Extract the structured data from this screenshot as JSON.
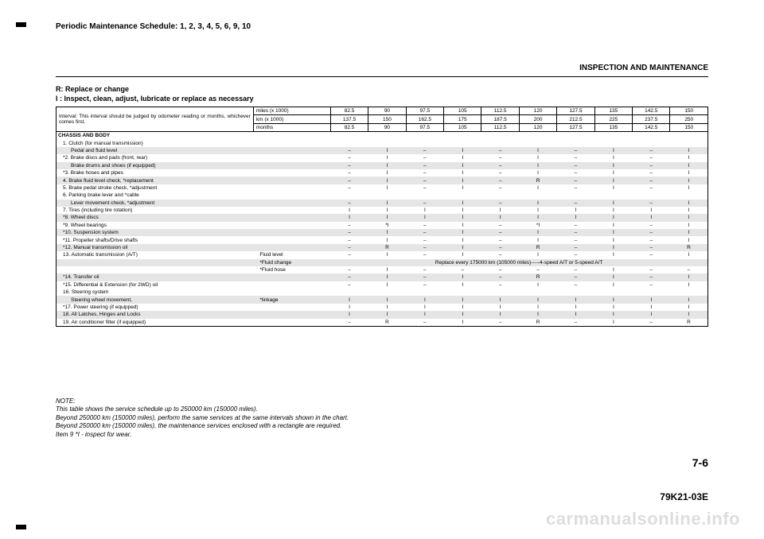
{
  "header_label": "Periodic Maintenance Schedule: 1, 2, 3, 4, 5, 6, 9, 10",
  "section_title": "INSPECTION AND MAINTENANCE",
  "legend_line1": "R: Replace or change",
  "legend_line2": " I : Inspect, clean, adjust, lubricate or replace as necessary",
  "interval_text": "Interval: This interval should be judged by odometer reading or months, whichever comes first.",
  "units": {
    "miles": "miles (x 1000)",
    "km": "km (x 1000)",
    "months": "months"
  },
  "cols_miles": [
    "82.5",
    "90",
    "97.5",
    "105",
    "112.5",
    "120",
    "127.5",
    "135",
    "142.5",
    "150"
  ],
  "cols_km": [
    "137.5",
    "150",
    "162.5",
    "175",
    "187.5",
    "200",
    "212.5",
    "225",
    "237.5",
    "250"
  ],
  "cols_months": [
    "82.5",
    "90",
    "97.5",
    "105",
    "112.5",
    "120",
    "127.5",
    "135",
    "142.5",
    "150"
  ],
  "section_heading": "CHASSIS AND BODY",
  "rows": [
    {
      "label": "1. Clutch (for manual transmission)",
      "sub": false,
      "vals": null
    },
    {
      "label": "Pedal and fluid level",
      "sub": true,
      "vals": [
        "–",
        "I",
        "–",
        "I",
        "–",
        "I",
        "–",
        "I",
        "–",
        "I"
      ],
      "shade": true
    },
    {
      "label": "*2. Brake discs and pads (front, rear)",
      "sub": false,
      "vals": [
        "–",
        "I",
        "–",
        "I",
        "–",
        "I",
        "–",
        "I",
        "–",
        "I"
      ]
    },
    {
      "label": "Brake drums and shoes (if equipped)",
      "sub": true,
      "vals": [
        "–",
        "I",
        "–",
        "I",
        "–",
        "I",
        "–",
        "I",
        "–",
        "I"
      ],
      "shade": true
    },
    {
      "label": "*3. Brake hoses and pipes",
      "sub": false,
      "vals": [
        "–",
        "I",
        "–",
        "I",
        "–",
        "I",
        "–",
        "I",
        "–",
        "I"
      ]
    },
    {
      "label": "4. Brake fluid level check, *replacement",
      "sub": false,
      "vals": [
        "–",
        "I",
        "–",
        "I",
        "–",
        "R",
        "–",
        "I",
        "–",
        "I"
      ],
      "shade": true
    },
    {
      "label": "5. Brake pedal stroke check, *adjustment",
      "sub": false,
      "vals": [
        "–",
        "I",
        "–",
        "I",
        "–",
        "I",
        "–",
        "I",
        "–",
        "I"
      ]
    },
    {
      "label": "6. Parking brake lever and *cable",
      "sub": false,
      "vals": null
    },
    {
      "label": "Lever movement check, *adjustment",
      "sub": true,
      "vals": [
        "–",
        "I",
        "–",
        "I",
        "–",
        "I",
        "–",
        "I",
        "–",
        "I"
      ],
      "shade": true
    },
    {
      "label": "7. Tires (including tire rotation)",
      "sub": false,
      "vals": [
        "I",
        "I",
        "I",
        "I",
        "I",
        "I",
        "I",
        "I",
        "I",
        "I"
      ]
    },
    {
      "label": "*8. Wheel discs",
      "sub": false,
      "vals": [
        "I",
        "I",
        "I",
        "I",
        "I",
        "I",
        "I",
        "I",
        "I",
        "I"
      ],
      "shade": true
    },
    {
      "label": "*9. Wheel bearings",
      "sub": false,
      "vals": [
        "–",
        "*I",
        "–",
        "I",
        "–",
        "*I",
        "–",
        "I",
        "–",
        "I"
      ]
    },
    {
      "label": "*10. Suspension system",
      "sub": false,
      "vals": [
        "–",
        "I",
        "–",
        "I",
        "–",
        "I",
        "–",
        "I",
        "–",
        "I"
      ],
      "shade": true
    },
    {
      "label": "*11. Propeller shafts/Drive shafts",
      "sub": false,
      "vals": [
        "–",
        "I",
        "–",
        "I",
        "–",
        "I",
        "–",
        "I",
        "–",
        "I"
      ]
    },
    {
      "label": "*12. Manual transmission oil",
      "sub": false,
      "vals": [
        "–",
        "R",
        "–",
        "I",
        "–",
        "R",
        "–",
        "I",
        "–",
        "R"
      ],
      "shade": true
    },
    {
      "label": "13. Automatic transmission (A/T)",
      "sub": false,
      "extra": "Fluid level",
      "vals": [
        "–",
        "I",
        "–",
        "I",
        "–",
        "I",
        "–",
        "I",
        "–",
        "I"
      ]
    },
    {
      "label": "",
      "sub": false,
      "extra": "*Fluid change",
      "span": "Replace every 175000 km (105000 miles)-----4-speed A/T or 5-speed A/T",
      "shade": true
    },
    {
      "label": "",
      "sub": false,
      "extra": "*Fluid hose",
      "vals": [
        "–",
        "I",
        "–",
        "–",
        "–",
        "–",
        "–",
        "I",
        "–",
        "–"
      ]
    },
    {
      "label": "*14. Transfer oil",
      "sub": false,
      "vals": [
        "–",
        "I",
        "–",
        "I",
        "–",
        "R",
        "–",
        "I",
        "–",
        "I"
      ],
      "shade": true
    },
    {
      "label": "*15. Differential & Extension (for 2WD) oil",
      "sub": false,
      "vals": [
        "–",
        "I",
        "–",
        "I",
        "–",
        "I",
        "–",
        "I",
        "–",
        "I"
      ]
    },
    {
      "label": "16. Steering system",
      "sub": false,
      "vals": null
    },
    {
      "label": "Steering wheel movement,",
      "sub": true,
      "extra": "*linkage",
      "vals": [
        "I",
        "I",
        "I",
        "I",
        "I",
        "I",
        "I",
        "I",
        "I",
        "I"
      ],
      "shade": true
    },
    {
      "label": "*17. Power steering (if equipped)",
      "sub": false,
      "vals": [
        "I",
        "I",
        "I",
        "I",
        "I",
        "I",
        "I",
        "I",
        "I",
        "I"
      ]
    },
    {
      "label": "18. All Latches, Hinges and Locks",
      "sub": false,
      "vals": [
        "I",
        "I",
        "I",
        "I",
        "I",
        "I",
        "I",
        "I",
        "I",
        "I"
      ],
      "shade": true
    },
    {
      "label": "19. Air conditioner filter (if equipped)",
      "sub": false,
      "vals": [
        "–",
        "R",
        "–",
        "I",
        "–",
        "R",
        "–",
        "I",
        "–",
        "R"
      ]
    }
  ],
  "notes_title": "NOTE:",
  "notes": [
    "This table shows the service schedule up to 250000 km (150000 miles).",
    "Beyond 250000 km (150000 miles), perform the same services at the same intervals shown in the chart.",
    "Beyond 250000 km (150000 miles), the maintenance services enclosed with a rectangle are required.",
    "Item 9 *I - inspect for wear."
  ],
  "page_number": "7-6",
  "doc_number": "79K21-03E",
  "watermark": "carmanualsonline.info"
}
